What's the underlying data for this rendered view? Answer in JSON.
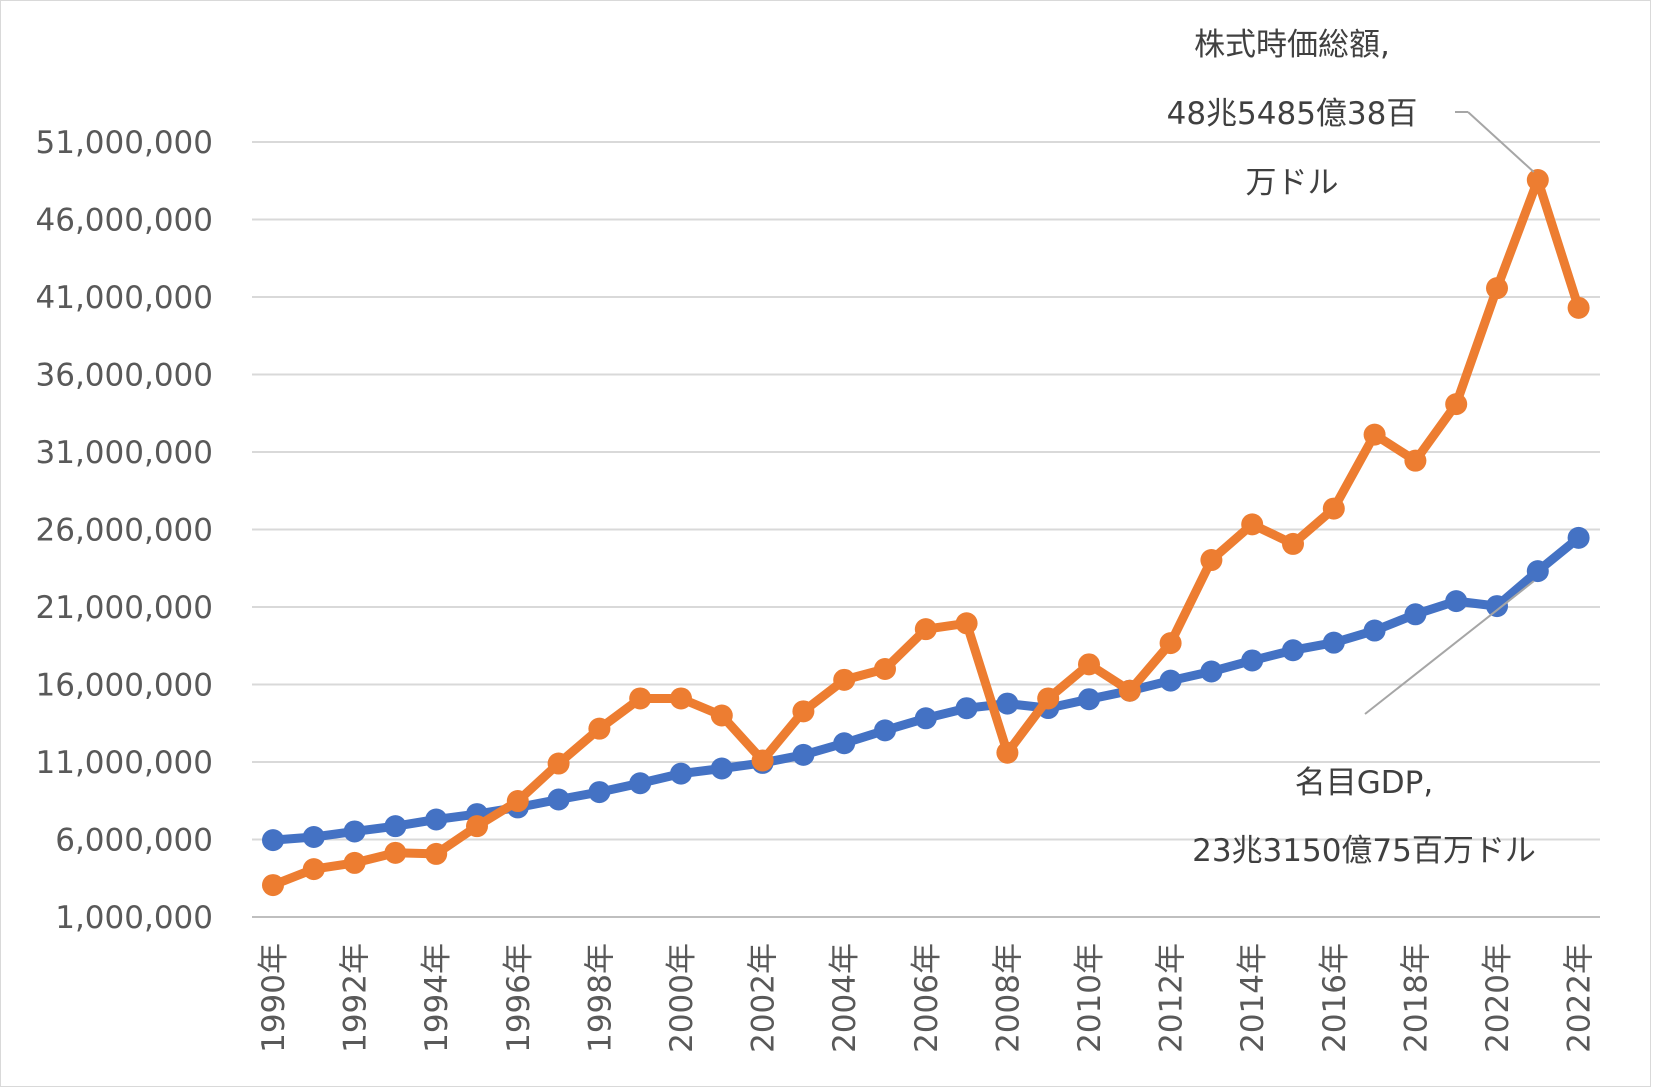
{
  "chart_data": {
    "type": "line",
    "title": "",
    "xlabel": "",
    "ylabel": "",
    "ylim": [
      1000000,
      51000000
    ],
    "y_ticks": [
      1000000,
      6000000,
      11000000,
      16000000,
      21000000,
      26000000,
      31000000,
      36000000,
      41000000,
      46000000,
      51000000
    ],
    "y_tick_labels": [
      "1,000,000",
      "6,000,000",
      "11,000,000",
      "16,000,000",
      "21,000,000",
      "26,000,000",
      "31,000,000",
      "36,000,000",
      "41,000,000",
      "46,000,000",
      "51,000,000"
    ],
    "grid": "horizontal",
    "legend": "none",
    "categories": [
      "1990年",
      "1991年",
      "1992年",
      "1993年",
      "1994年",
      "1995年",
      "1996年",
      "1997年",
      "1998年",
      "1999年",
      "2000年",
      "2001年",
      "2002年",
      "2003年",
      "2004年",
      "2005年",
      "2006年",
      "2007年",
      "2008年",
      "2009年",
      "2010年",
      "2011年",
      "2012年",
      "2013年",
      "2014年",
      "2015年",
      "2016年",
      "2017年",
      "2018年",
      "2019年",
      "2020年",
      "2021年",
      "2022年"
    ],
    "x_tick_labels": [
      "1990年",
      "1992年",
      "1994年",
      "1996年",
      "1998年",
      "2000年",
      "2002年",
      "2004年",
      "2006年",
      "2008年",
      "2010年",
      "2012年",
      "2014年",
      "2016年",
      "2018年",
      "2020年",
      "2022年"
    ],
    "series": [
      {
        "name": "名目GDP",
        "color": "#4472c4",
        "values": [
          5960000,
          6160000,
          6520000,
          6860000,
          7290000,
          7640000,
          8070000,
          8580000,
          9060000,
          9630000,
          10250000,
          10580000,
          10940000,
          11460000,
          12210000,
          13040000,
          13820000,
          14470000,
          14770000,
          14480000,
          15050000,
          15600000,
          16250000,
          16840000,
          17550000,
          18210000,
          18700000,
          19480000,
          20530000,
          21380000,
          21060000,
          23315075,
          25460000
        ]
      },
      {
        "name": "株式時価総額",
        "color": "#ed7d31",
        "values": [
          3060000,
          4090000,
          4490000,
          5140000,
          5070000,
          6860000,
          8480000,
          10900000,
          13150000,
          15100000,
          15100000,
          14000000,
          11100000,
          14270000,
          16300000,
          17000000,
          19570000,
          19950000,
          11600000,
          15100000,
          17300000,
          15600000,
          18670000,
          24030000,
          26330000,
          25070000,
          27350000,
          32120000,
          30440000,
          34090000,
          41570000,
          48548538,
          40300000
        ]
      }
    ],
    "annotations": [
      {
        "series": "株式時価総額",
        "lines": [
          "株式時価総額,",
          "48兆5485億38百",
          "万ドル"
        ]
      },
      {
        "series": "名目GDP",
        "lines": [
          "名目GDP,",
          "23兆3150億75百万ドル"
        ]
      }
    ]
  }
}
